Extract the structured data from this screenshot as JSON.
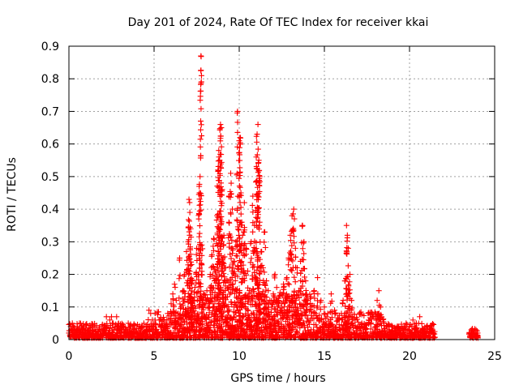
{
  "chart_data": {
    "type": "scatter",
    "title": "Day 201 of 2024, Rate Of TEC Index for receiver kkai",
    "xlabel": "GPS time / hours",
    "ylabel": "ROTI / TECUs",
    "xlim": [
      0,
      25
    ],
    "ylim": [
      0,
      0.9
    ],
    "xticks": [
      0,
      5,
      10,
      15,
      20,
      25
    ],
    "yticks": [
      0,
      0.1,
      0.2,
      0.3,
      0.4,
      0.5,
      0.6,
      0.7,
      0.8,
      0.9
    ],
    "xtick_labels": [
      "0",
      "5",
      "10",
      "15",
      "20",
      "25"
    ],
    "ytick_labels": [
      "0",
      "0.1",
      "0.2",
      "0.3",
      "0.4",
      "0.5",
      "0.6",
      "0.7",
      "0.8",
      "0.9"
    ],
    "grid": true,
    "marker": "+",
    "series": [
      {
        "name": "ROTI",
        "color": "#ff0000",
        "points": [
          [
            0.0,
            0.02
          ],
          [
            0.1,
            0.04
          ],
          [
            0.2,
            0.05
          ],
          [
            0.3,
            0.03
          ],
          [
            0.4,
            0.02
          ],
          [
            0.5,
            0.04
          ],
          [
            0.6,
            0.03
          ],
          [
            0.7,
            0.02
          ],
          [
            0.8,
            0.03
          ],
          [
            0.9,
            0.02
          ],
          [
            1.0,
            0.03
          ],
          [
            1.2,
            0.02
          ],
          [
            1.4,
            0.03
          ],
          [
            1.6,
            0.02
          ],
          [
            1.8,
            0.03
          ],
          [
            2.0,
            0.02
          ],
          [
            2.2,
            0.07
          ],
          [
            2.4,
            0.06
          ],
          [
            2.5,
            0.07
          ],
          [
            2.6,
            0.05
          ],
          [
            2.8,
            0.07
          ],
          [
            3.0,
            0.03
          ],
          [
            3.2,
            0.02
          ],
          [
            3.4,
            0.03
          ],
          [
            3.6,
            0.02
          ],
          [
            3.8,
            0.03
          ],
          [
            4.0,
            0.02
          ],
          [
            4.2,
            0.03
          ],
          [
            4.4,
            0.05
          ],
          [
            4.6,
            0.04
          ],
          [
            4.7,
            0.09
          ],
          [
            4.8,
            0.08
          ],
          [
            4.9,
            0.06
          ],
          [
            5.0,
            0.03
          ],
          [
            5.2,
            0.02
          ],
          [
            5.4,
            0.04
          ],
          [
            5.6,
            0.06
          ],
          [
            5.8,
            0.08
          ],
          [
            5.9,
            0.05
          ],
          [
            6.0,
            0.11
          ],
          [
            6.1,
            0.14
          ],
          [
            6.2,
            0.17
          ],
          [
            6.3,
            0.12
          ],
          [
            6.4,
            0.08
          ],
          [
            6.5,
            0.25
          ],
          [
            6.6,
            0.1
          ],
          [
            6.7,
            0.15
          ],
          [
            6.8,
            0.2
          ],
          [
            6.9,
            0.27
          ],
          [
            7.0,
            0.3
          ],
          [
            7.05,
            0.43
          ],
          [
            7.1,
            0.39
          ],
          [
            7.15,
            0.34
          ],
          [
            7.2,
            0.23
          ],
          [
            7.25,
            0.18
          ],
          [
            7.3,
            0.12
          ],
          [
            7.4,
            0.16
          ],
          [
            7.5,
            0.28
          ],
          [
            7.6,
            0.2
          ],
          [
            7.65,
            0.47
          ],
          [
            7.7,
            0.5
          ],
          [
            7.75,
            0.87
          ],
          [
            7.8,
            0.29
          ],
          [
            7.9,
            0.14
          ],
          [
            8.0,
            0.11
          ],
          [
            8.1,
            0.15
          ],
          [
            8.2,
            0.1
          ],
          [
            8.3,
            0.2
          ],
          [
            8.4,
            0.26
          ],
          [
            8.5,
            0.31
          ],
          [
            8.55,
            0.18
          ],
          [
            8.6,
            0.21
          ],
          [
            8.7,
            0.38
          ],
          [
            8.75,
            0.52
          ],
          [
            8.8,
            0.58
          ],
          [
            8.85,
            0.55
          ],
          [
            8.9,
            0.66
          ],
          [
            8.95,
            0.65
          ],
          [
            9.0,
            0.46
          ],
          [
            9.05,
            0.25
          ],
          [
            9.1,
            0.32
          ],
          [
            9.2,
            0.22
          ],
          [
            9.3,
            0.18
          ],
          [
            9.4,
            0.44
          ],
          [
            9.5,
            0.51
          ],
          [
            9.6,
            0.4
          ],
          [
            9.7,
            0.24
          ],
          [
            9.8,
            0.3
          ],
          [
            9.9,
            0.7
          ],
          [
            10.0,
            0.61
          ],
          [
            10.05,
            0.62
          ],
          [
            10.1,
            0.45
          ],
          [
            10.15,
            0.36
          ],
          [
            10.2,
            0.32
          ],
          [
            10.3,
            0.42
          ],
          [
            10.4,
            0.28
          ],
          [
            10.5,
            0.21
          ],
          [
            10.6,
            0.15
          ],
          [
            10.7,
            0.3
          ],
          [
            10.8,
            0.44
          ],
          [
            10.9,
            0.35
          ],
          [
            11.0,
            0.56
          ],
          [
            11.05,
            0.63
          ],
          [
            11.1,
            0.66
          ],
          [
            11.15,
            0.55
          ],
          [
            11.2,
            0.5
          ],
          [
            11.3,
            0.27
          ],
          [
            11.4,
            0.22
          ],
          [
            11.5,
            0.33
          ],
          [
            11.6,
            0.18
          ],
          [
            11.7,
            0.15
          ],
          [
            11.8,
            0.12
          ],
          [
            11.9,
            0.1
          ],
          [
            12.0,
            0.14
          ],
          [
            12.1,
            0.2
          ],
          [
            12.2,
            0.16
          ],
          [
            12.3,
            0.12
          ],
          [
            12.4,
            0.09
          ],
          [
            12.5,
            0.11
          ],
          [
            12.6,
            0.17
          ],
          [
            12.7,
            0.13
          ],
          [
            12.8,
            0.19
          ],
          [
            12.9,
            0.25
          ],
          [
            13.0,
            0.32
          ],
          [
            13.1,
            0.38
          ],
          [
            13.2,
            0.4
          ],
          [
            13.3,
            0.28
          ],
          [
            13.4,
            0.22
          ],
          [
            13.5,
            0.15
          ],
          [
            13.6,
            0.24
          ],
          [
            13.7,
            0.35
          ],
          [
            13.8,
            0.3
          ],
          [
            13.9,
            0.18
          ],
          [
            14.0,
            0.12
          ],
          [
            14.2,
            0.1
          ],
          [
            14.4,
            0.15
          ],
          [
            14.6,
            0.19
          ],
          [
            14.8,
            0.12
          ],
          [
            15.0,
            0.1
          ],
          [
            15.2,
            0.08
          ],
          [
            15.4,
            0.14
          ],
          [
            15.6,
            0.09
          ],
          [
            15.8,
            0.06
          ],
          [
            16.0,
            0.08
          ],
          [
            16.1,
            0.12
          ],
          [
            16.2,
            0.18
          ],
          [
            16.3,
            0.35
          ],
          [
            16.35,
            0.32
          ],
          [
            16.4,
            0.28
          ],
          [
            16.5,
            0.2
          ],
          [
            16.6,
            0.12
          ],
          [
            16.8,
            0.06
          ],
          [
            17.0,
            0.04
          ],
          [
            17.2,
            0.05
          ],
          [
            17.4,
            0.03
          ],
          [
            17.6,
            0.06
          ],
          [
            17.8,
            0.08
          ],
          [
            18.0,
            0.07
          ],
          [
            18.1,
            0.12
          ],
          [
            18.2,
            0.15
          ],
          [
            18.3,
            0.1
          ],
          [
            18.5,
            0.05
          ],
          [
            18.8,
            0.03
          ],
          [
            19.0,
            0.04
          ],
          [
            19.2,
            0.02
          ],
          [
            19.5,
            0.03
          ],
          [
            19.8,
            0.05
          ],
          [
            20.0,
            0.04
          ],
          [
            20.2,
            0.06
          ],
          [
            20.4,
            0.05
          ],
          [
            20.6,
            0.07
          ],
          [
            20.8,
            0.03
          ],
          [
            21.0,
            0.04
          ],
          [
            21.2,
            0.03
          ],
          [
            21.4,
            0.02
          ],
          [
            23.6,
            0.02
          ],
          [
            23.7,
            0.03
          ],
          [
            23.8,
            0.02
          ],
          [
            23.9,
            0.03
          ],
          [
            24.0,
            0.02
          ]
        ]
      }
    ],
    "noise_bands": [
      {
        "x_start": 0.0,
        "x_end": 5.0,
        "max": 0.045
      },
      {
        "x_start": 5.0,
        "x_end": 6.5,
        "max": 0.08
      },
      {
        "x_start": 6.5,
        "x_end": 14.5,
        "max": 0.14
      },
      {
        "x_start": 14.5,
        "x_end": 18.5,
        "max": 0.08
      },
      {
        "x_start": 18.5,
        "x_end": 21.5,
        "max": 0.045
      },
      {
        "x_start": 23.5,
        "x_end": 24.0,
        "max": 0.03
      }
    ]
  }
}
